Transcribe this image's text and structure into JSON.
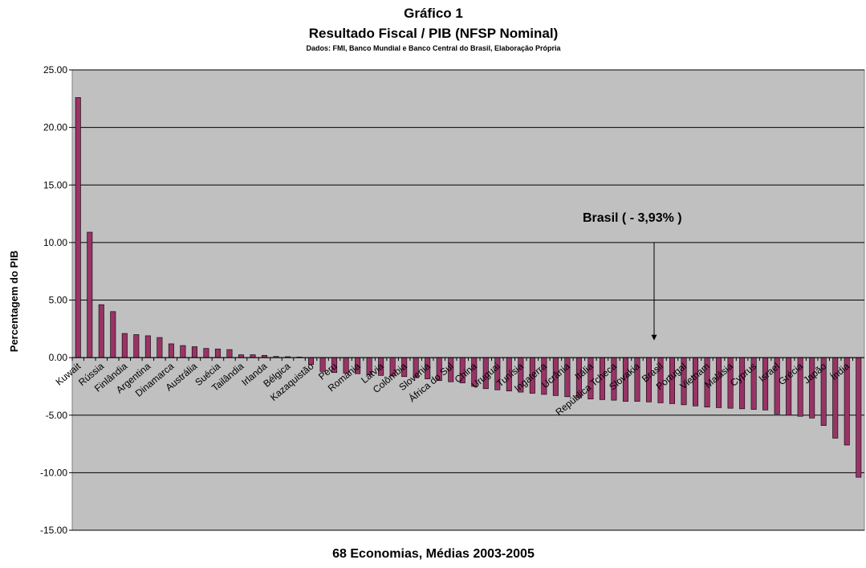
{
  "chart_data": {
    "type": "bar",
    "title": "Gráfico 1",
    "subtitle": "Resultado Fiscal / PIB (NFSP Nominal)",
    "source": "Dados: FMI, Banco Mundial e Banco Central do Brasil, Elaboração Própria",
    "x_label": "68 Economias, Médias 2003-2005",
    "y_label": "Percentagem do PIB",
    "annotation": "Brasil ( - 3,93% )",
    "categories": [
      "Kuwait",
      null,
      "Rússia",
      null,
      "Finlândia",
      null,
      "Argentina",
      null,
      "Dinamarca",
      null,
      "Austrália",
      null,
      "Suécia",
      null,
      "Tailândia",
      null,
      "Irlanda",
      null,
      "Bélgica",
      null,
      "Kazaquistão",
      null,
      "Peru",
      null,
      "Romania",
      null,
      "Latvia",
      null,
      "Colômbia",
      null,
      "Slovenia",
      null,
      "África do Sul",
      null,
      "China",
      null,
      "Uruguai",
      null,
      "Tunísia",
      null,
      "Ingaterra",
      null,
      "Ucrânia",
      null,
      "Itália",
      null,
      "República Tcheca",
      null,
      "Slovakia",
      null,
      "Brasil",
      null,
      "Portugal",
      null,
      "Vietnam",
      null,
      "Malásia",
      null,
      "Cyprus",
      null,
      "Israel",
      null,
      "Grécia",
      null,
      "Japão",
      null,
      "Índia",
      null
    ],
    "values": [
      22.6,
      10.9,
      4.6,
      4.0,
      2.1,
      2.0,
      1.9,
      1.75,
      1.2,
      1.05,
      0.95,
      0.8,
      0.75,
      0.7,
      0.25,
      0.25,
      0.2,
      0.1,
      0.08,
      0.05,
      -0.6,
      -1.2,
      -1.3,
      -1.35,
      -1.4,
      -1.5,
      -1.55,
      -1.6,
      -1.65,
      -1.75,
      -1.85,
      -2.0,
      -2.1,
      -2.2,
      -2.5,
      -2.7,
      -2.8,
      -2.9,
      -3.0,
      -3.1,
      -3.2,
      -3.3,
      -3.4,
      -3.5,
      -3.6,
      -3.65,
      -3.7,
      -3.8,
      -3.8,
      -3.85,
      -3.93,
      -4.0,
      -4.1,
      -4.2,
      -4.3,
      -4.35,
      -4.4,
      -4.45,
      -4.5,
      -4.55,
      -4.9,
      -5.0,
      -5.1,
      -5.25,
      -5.9,
      -7.0,
      -7.6,
      -10.4
    ],
    "color": "#993366",
    "plot_background": "#c0c0c0",
    "ylim": [
      -15,
      25
    ],
    "yticks": [
      {
        "value": -15,
        "label": "-15.00"
      },
      {
        "value": -10,
        "label": "-10.00"
      },
      {
        "value": -5,
        "label": "-5.00"
      },
      {
        "value": 0,
        "label": "0.00"
      },
      {
        "value": 5,
        "label": "5.00"
      },
      {
        "value": 10,
        "label": "10.00"
      },
      {
        "value": 15,
        "label": "15.00"
      },
      {
        "value": 20,
        "label": "20.00"
      },
      {
        "value": 25,
        "label": "25.00"
      }
    ],
    "grid": true
  }
}
